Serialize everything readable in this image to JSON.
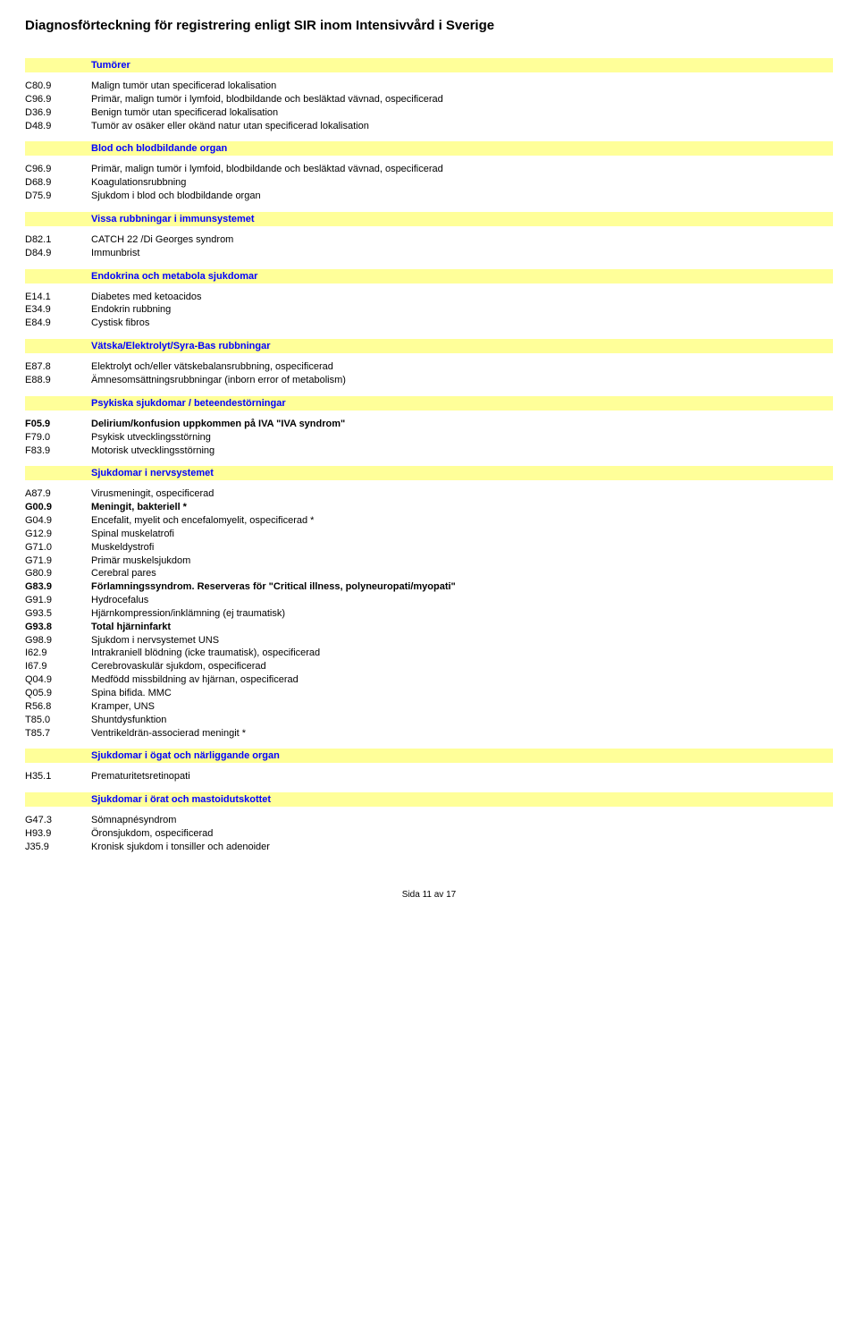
{
  "title": "Diagnosförteckning för registrering enligt SIR inom Intensivvård i Sverige",
  "colors": {
    "sectionBg": "#ffff99",
    "sectionText": "#0000ff",
    "bodyText": "#000000",
    "pageBg": "#ffffff"
  },
  "sections": [
    {
      "header": "Tumörer",
      "rows": [
        {
          "code": "C80.9",
          "desc": "Malign tumör utan specificerad lokalisation",
          "bold": false
        },
        {
          "code": "C96.9",
          "desc": "Primär, malign tumör i lymfoid, blodbildande och besläktad vävnad, ospecificerad",
          "bold": false
        },
        {
          "code": "D36.9",
          "desc": "Benign tumör utan specificerad lokalisation",
          "bold": false
        },
        {
          "code": "D48.9",
          "desc": "Tumör av osäker eller okänd natur utan specificerad lokalisation",
          "bold": false
        }
      ]
    },
    {
      "header": "Blod och blodbildande organ",
      "rows": [
        {
          "code": "C96.9",
          "desc": "Primär, malign tumör i lymfoid, blodbildande och besläktad vävnad, ospecificerad",
          "bold": false
        },
        {
          "code": "D68.9",
          "desc": "Koagulationsrubbning",
          "bold": false
        },
        {
          "code": "D75.9",
          "desc": "Sjukdom i blod och blodbildande organ",
          "bold": false
        }
      ]
    },
    {
      "header": "Vissa rubbningar i immunsystemet",
      "rows": [
        {
          "code": "D82.1",
          "desc": "CATCH 22 /Di Georges syndrom",
          "bold": false
        },
        {
          "code": "D84.9",
          "desc": "Immunbrist",
          "bold": false
        }
      ]
    },
    {
      "header": "Endokrina och metabola sjukdomar",
      "rows": [
        {
          "code": "E14.1",
          "desc": "Diabetes med ketoacidos",
          "bold": false
        },
        {
          "code": "E34.9",
          "desc": "Endokrin rubbning",
          "bold": false
        },
        {
          "code": "E84.9",
          "desc": "Cystisk fibros",
          "bold": false
        }
      ]
    },
    {
      "header": "Vätska/Elektrolyt/Syra-Bas rubbningar",
      "rows": [
        {
          "code": "E87.8",
          "desc": "Elektrolyt och/eller vätskebalansrubbning, ospecificerad",
          "bold": false
        },
        {
          "code": "E88.9",
          "desc": "Ämnesomsättningsrubbningar (inborn error of metabolism)",
          "bold": false
        }
      ]
    },
    {
      "header": "Psykiska sjukdomar / beteendestörningar",
      "rows": [
        {
          "code": "F05.9",
          "desc": "Delirium/konfusion uppkommen på IVA \"IVA syndrom\"",
          "bold": true
        },
        {
          "code": "F79.0",
          "desc": "Psykisk utvecklingsstörning",
          "bold": false
        },
        {
          "code": "F83.9",
          "desc": "Motorisk utvecklingsstörning",
          "bold": false
        }
      ]
    },
    {
      "header": "Sjukdomar i nervsystemet",
      "rows": [
        {
          "code": "A87.9",
          "desc": "Virusmeningit, ospecificerad",
          "bold": false
        },
        {
          "code": "G00.9",
          "desc": "Meningit, bakteriell *",
          "bold": true
        },
        {
          "code": "G04.9",
          "desc": "Encefalit, myelit och encefalomyelit, ospecificerad *",
          "bold": false
        },
        {
          "code": "G12.9",
          "desc": "Spinal muskelatrofi",
          "bold": false
        },
        {
          "code": "G71.0",
          "desc": "Muskeldystrofi",
          "bold": false
        },
        {
          "code": "G71.9",
          "desc": "Primär muskelsjukdom",
          "bold": false
        },
        {
          "code": "G80.9",
          "desc": "Cerebral pares",
          "bold": false
        },
        {
          "code": "G83.9",
          "desc": "Förlamningssyndrom. Reserveras för \"Critical illness, polyneuropati/myopati\"",
          "bold": true
        },
        {
          "code": "G91.9",
          "desc": "Hydrocefalus",
          "bold": false
        },
        {
          "code": "G93.5",
          "desc": "Hjärnkompression/inklämning (ej traumatisk)",
          "bold": false
        },
        {
          "code": "G93.8",
          "desc": "Total hjärninfarkt",
          "bold": true
        },
        {
          "code": "G98.9",
          "desc": "Sjukdom i nervsystemet UNS",
          "bold": false
        },
        {
          "code": "I62.9",
          "desc": "Intrakraniell blödning (icke traumatisk), ospecificerad",
          "bold": false
        },
        {
          "code": "I67.9",
          "desc": "Cerebrovaskulär sjukdom, ospecificerad",
          "bold": false
        },
        {
          "code": "Q04.9",
          "desc": "Medfödd missbildning av hjärnan, ospecificerad",
          "bold": false
        },
        {
          "code": "Q05.9",
          "desc": "Spina bifida. MMC",
          "bold": false
        },
        {
          "code": "R56.8",
          "desc": "Kramper, UNS",
          "bold": false
        },
        {
          "code": "T85.0",
          "desc": "Shuntdysfunktion",
          "bold": false
        },
        {
          "code": "T85.7",
          "desc": "Ventrikeldrän-associerad meningit *",
          "bold": false
        }
      ]
    },
    {
      "header": "Sjukdomar i ögat och närliggande organ",
      "rows": [
        {
          "code": "H35.1",
          "desc": "Prematuritetsretinopati",
          "bold": false
        }
      ]
    },
    {
      "header": "Sjukdomar i örat och mastoidutskottet",
      "rows": [
        {
          "code": "G47.3",
          "desc": "Sömnapnésyndrom",
          "bold": false
        },
        {
          "code": "H93.9",
          "desc": "Öronsjukdom, ospecificerad",
          "bold": false
        },
        {
          "code": "J35.9",
          "desc": "Kronisk sjukdom i tonsiller och adenoider",
          "bold": false
        }
      ]
    }
  ],
  "footer": "Sida 11 av 17"
}
